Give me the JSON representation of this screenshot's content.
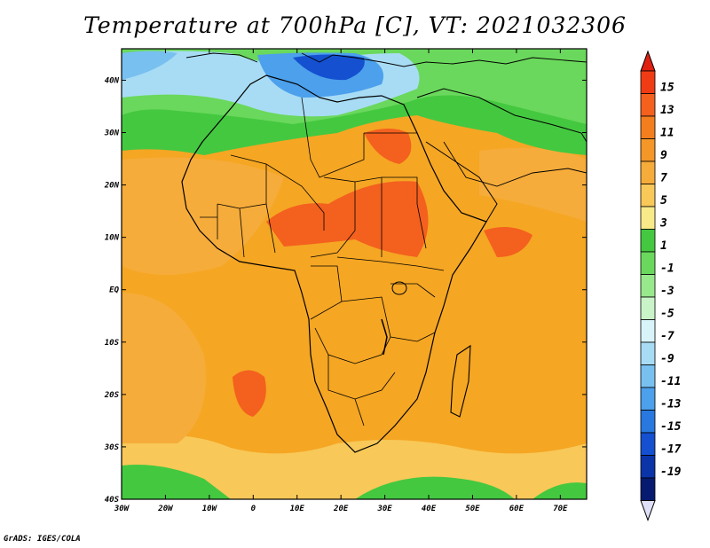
{
  "title": "Temperature at 700hPa [C], VT: 2021032306",
  "credit": "GrADS: IGES/COLA",
  "map": {
    "lon_range": [
      -30,
      76
    ],
    "lat_range": [
      -40,
      46
    ],
    "lon_ticks": [
      "30W",
      "20W",
      "10W",
      "0",
      "10E",
      "20E",
      "30E",
      "40E",
      "50E",
      "60E",
      "70E"
    ],
    "lat_ticks": [
      "40N",
      "30N",
      "20N",
      "10N",
      "EQ",
      "10S",
      "20S",
      "30S",
      "40S"
    ],
    "background_color": "#f5a623"
  },
  "colorbar": {
    "labels": [
      "15",
      "13",
      "11",
      "9",
      "7",
      "5",
      "3",
      "1",
      "-1",
      "-3",
      "-5",
      "-7",
      "-9",
      "-11",
      "-13",
      "-15",
      "-17",
      "-19"
    ],
    "colors": [
      "#f03c14",
      "#f4601e",
      "#f47e1e",
      "#f49628",
      "#f6ac3a",
      "#f8c858",
      "#f8ea88",
      "#44c840",
      "#6ad85c",
      "#98e88c",
      "#c8f4c8",
      "#d8f4f8",
      "#a8dcf4",
      "#78c0f0",
      "#4ca0ec",
      "#2878e0",
      "#1450d0",
      "#0a34a8",
      "#061a70"
    ],
    "top_arrow_color": "#e02010",
    "bottom_arrow_color": "#e0e0f8"
  }
}
